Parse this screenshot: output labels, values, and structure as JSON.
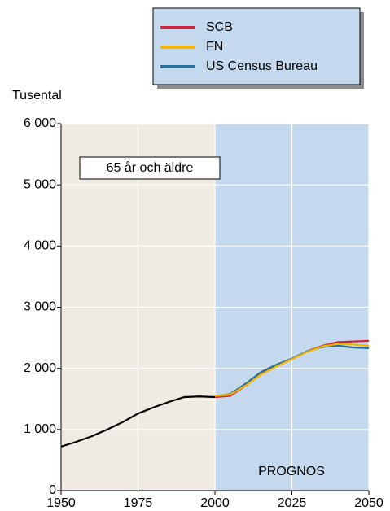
{
  "chart_data": {
    "type": "line",
    "y_label": "Tusental",
    "annotation": "65 år och äldre",
    "forecast_label": "PROGNOS",
    "forecast_from": 2000,
    "x": [
      1950,
      1955,
      1960,
      1965,
      1970,
      1975,
      1980,
      1985,
      1990,
      1995,
      2000,
      2005,
      2010,
      2015,
      2020,
      2025,
      2030,
      2035,
      2040,
      2045,
      2050
    ],
    "series": [
      {
        "color": "#000000",
        "values": [
          720,
          800,
          890,
          1000,
          1120,
          1260,
          1360,
          1450,
          1530,
          1540,
          1530,
          null,
          null,
          null,
          null,
          null,
          null,
          null,
          null,
          null,
          null
        ]
      },
      {
        "name": "SCB",
        "color": "#d2233c",
        "values": [
          null,
          null,
          null,
          null,
          null,
          null,
          null,
          null,
          null,
          null,
          1530,
          1550,
          1720,
          1910,
          2040,
          2150,
          2280,
          2370,
          2430,
          2440,
          2450
        ]
      },
      {
        "name": "US Census Bureau",
        "color": "#2a6f97",
        "values": [
          null,
          null,
          null,
          null,
          null,
          null,
          null,
          null,
          null,
          null,
          1540,
          1580,
          1750,
          1940,
          2060,
          2160,
          2280,
          2350,
          2370,
          2340,
          2330
        ]
      },
      {
        "name": "FN",
        "color": "#f5b400",
        "values": [
          null,
          null,
          null,
          null,
          null,
          null,
          null,
          null,
          null,
          null,
          1550,
          1570,
          1720,
          1900,
          2030,
          2150,
          2270,
          2360,
          2400,
          2390,
          2370
        ]
      }
    ],
    "legend_order": [
      1,
      3,
      2
    ],
    "xlim": [
      1950,
      2050
    ],
    "xticks": [
      1950,
      1975,
      2000,
      2025,
      2050
    ],
    "ylim": [
      0,
      6000
    ],
    "yticks": [
      0,
      {
        "value": 1000,
        "label": "1 000"
      },
      {
        "value": 2000,
        "label": "2 000"
      },
      {
        "value": 3000,
        "label": "3 000"
      },
      {
        "value": 4000,
        "label": "4 000"
      },
      {
        "value": 5000,
        "label": "5 000"
      },
      {
        "value": 6000,
        "label": "6 000"
      }
    ],
    "grid": true,
    "history_color": "#efebe3",
    "forecast_color": "#c5d9ee"
  }
}
